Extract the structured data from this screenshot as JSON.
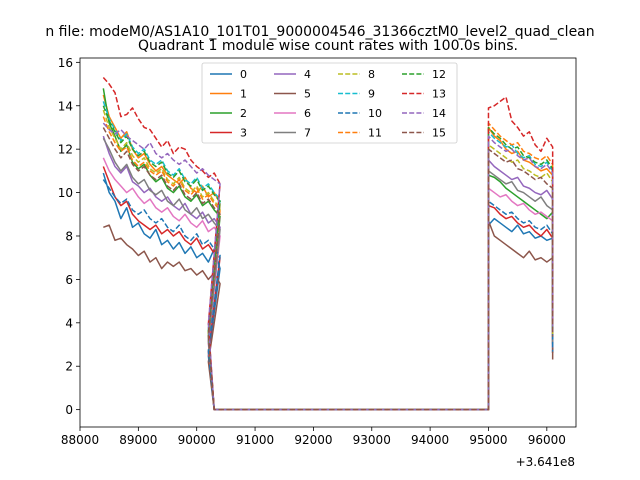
{
  "chart_data": {
    "type": "line",
    "suptitle": "n file: modeM0/AS1A10_101T01_9000004546_31366cztM0_level2_quad_clean",
    "title": "Quadrant 1 module wise count rates with 100.0s bins.",
    "xlabel": "",
    "ylabel": "",
    "x_offset_label": "+3.641e8",
    "xlim": [
      88000,
      96500
    ],
    "ylim": [
      -0.8,
      16.2
    ],
    "xticks": [
      88000,
      89000,
      90000,
      91000,
      92000,
      93000,
      94000,
      95000,
      96000
    ],
    "yticks": [
      0,
      2,
      4,
      6,
      8,
      10,
      12,
      14,
      16
    ],
    "grid": false,
    "legend_position": "top-center",
    "legend_columns": 4,
    "segments": [
      {
        "x_start": 88400,
        "x_step": 100,
        "count": 21,
        "drop_x": [
          90200,
          90300
        ]
      },
      {
        "x_start": 95000,
        "x_step": 100,
        "count": 12,
        "drop_x": [
          96100
        ]
      }
    ],
    "zero_range": [
      90300,
      95000
    ],
    "series": [
      {
        "name": "0",
        "color": "#1f77b4",
        "dashed": false,
        "seg1": [
          10.9,
          10.0,
          9.6,
          8.8,
          9.3,
          8.4,
          8.6,
          8.1,
          7.9,
          8.3,
          7.6,
          7.8,
          7.4,
          7.7,
          7.2,
          7.5,
          7.0,
          7.2,
          6.8,
          7.4,
          6.5
        ],
        "seg2": [
          8.5,
          8.8,
          8.6,
          8.4,
          8.2,
          8.5,
          8.1,
          8.2,
          7.9,
          8.0,
          7.8,
          7.9
        ]
      },
      {
        "name": "1",
        "color": "#ff7f0e",
        "dashed": false,
        "seg1": [
          14.5,
          13.5,
          13.0,
          12.5,
          12.8,
          12.0,
          11.6,
          11.8,
          11.3,
          11.0,
          11.2,
          10.8,
          10.6,
          10.4,
          10.7,
          10.2,
          10.0,
          10.3,
          9.8,
          10.0,
          9.5
        ],
        "seg2": [
          13.0,
          12.6,
          12.4,
          12.0,
          11.8,
          11.9,
          11.5,
          11.4,
          11.2,
          11.0,
          11.1,
          10.8
        ]
      },
      {
        "name": "2",
        "color": "#2ca02c",
        "dashed": false,
        "seg1": [
          14.8,
          13.2,
          12.6,
          11.9,
          12.2,
          11.4,
          11.1,
          11.3,
          10.8,
          10.5,
          10.7,
          10.2,
          10.0,
          10.3,
          9.8,
          9.6,
          9.9,
          9.4,
          9.6,
          9.2,
          8.9
        ],
        "seg2": [
          10.8,
          10.7,
          10.5,
          10.2,
          10.0,
          9.8,
          9.6,
          9.4,
          9.2,
          9.0,
          8.8,
          9.1
        ]
      },
      {
        "name": "3",
        "color": "#d62728",
        "dashed": false,
        "seg1": [
          11.2,
          10.5,
          9.8,
          9.4,
          9.6,
          9.0,
          8.7,
          8.5,
          8.3,
          8.5,
          8.1,
          8.3,
          8.0,
          8.2,
          7.8,
          7.6,
          7.9,
          7.4,
          7.6,
          7.2,
          7.0
        ],
        "seg2": [
          9.4,
          9.3,
          9.0,
          8.8,
          8.9,
          8.6,
          8.4,
          8.5,
          8.2,
          8.0,
          8.3,
          7.9
        ]
      },
      {
        "name": "4",
        "color": "#9467bd",
        "dashed": false,
        "seg1": [
          12.6,
          11.8,
          11.2,
          10.9,
          11.2,
          10.5,
          10.3,
          10.0,
          10.2,
          9.8,
          9.6,
          9.8,
          9.4,
          9.2,
          9.5,
          9.0,
          8.8,
          9.1,
          8.6,
          8.8,
          8.4
        ],
        "seg2": [
          11.5,
          11.2,
          11.0,
          10.8,
          10.6,
          10.7,
          10.3,
          10.2,
          10.0,
          9.9,
          10.1,
          9.7
        ]
      },
      {
        "name": "5",
        "color": "#8c564b",
        "dashed": false,
        "seg1": [
          8.4,
          8.5,
          7.8,
          7.9,
          7.6,
          7.4,
          7.1,
          7.3,
          6.8,
          7.0,
          6.5,
          6.8,
          6.6,
          6.8,
          6.4,
          6.5,
          6.2,
          6.4,
          6.0,
          6.3,
          5.8
        ],
        "seg2": [
          8.7,
          8.0,
          7.8,
          7.6,
          7.4,
          7.2,
          7.0,
          7.3,
          6.9,
          7.0,
          6.8,
          7.0
        ]
      },
      {
        "name": "6",
        "color": "#e377c2",
        "dashed": false,
        "seg1": [
          11.6,
          11.0,
          10.6,
          10.3,
          10.0,
          10.2,
          9.8,
          9.5,
          9.7,
          9.3,
          9.1,
          9.3,
          8.9,
          8.7,
          9.0,
          8.6,
          8.4,
          8.7,
          8.2,
          8.4,
          8.0
        ],
        "seg2": [
          10.2,
          10.0,
          9.8,
          9.9,
          9.6,
          9.4,
          9.5,
          9.2,
          9.0,
          9.1,
          8.9,
          8.7
        ]
      },
      {
        "name": "7",
        "color": "#7f7f7f",
        "dashed": false,
        "seg1": [
          12.5,
          12.0,
          11.4,
          11.0,
          11.3,
          10.7,
          10.4,
          10.6,
          10.1,
          9.9,
          10.1,
          9.6,
          9.4,
          9.7,
          9.2,
          9.0,
          9.3,
          8.8,
          9.0,
          8.6,
          8.3
        ],
        "seg2": [
          11.0,
          10.8,
          10.6,
          10.4,
          10.5,
          10.1,
          10.0,
          9.8,
          9.6,
          9.8,
          9.4,
          9.2
        ]
      },
      {
        "name": "8",
        "color": "#bcbd22",
        "dashed": true,
        "seg1": [
          13.8,
          13.0,
          12.5,
          12.0,
          12.3,
          11.7,
          11.4,
          11.6,
          11.1,
          10.9,
          11.1,
          10.6,
          10.4,
          10.7,
          10.2,
          10.0,
          10.3,
          9.8,
          10.0,
          9.6,
          9.3
        ],
        "seg2": [
          12.2,
          12.0,
          11.8,
          11.6,
          11.4,
          11.5,
          11.1,
          11.0,
          10.8,
          10.7,
          10.9,
          10.5
        ]
      },
      {
        "name": "9",
        "color": "#17becf",
        "dashed": true,
        "seg1": [
          14.2,
          13.4,
          12.9,
          12.4,
          12.7,
          12.1,
          11.8,
          12.0,
          11.5,
          11.3,
          11.5,
          11.0,
          10.8,
          11.1,
          10.6,
          10.4,
          10.7,
          10.2,
          10.4,
          10.0,
          9.7
        ],
        "seg2": [
          12.8,
          12.5,
          12.3,
          12.1,
          12.2,
          11.8,
          11.6,
          11.7,
          11.3,
          11.2,
          11.4,
          11.0
        ]
      },
      {
        "name": "10",
        "color": "#1f77b4",
        "dashed": true,
        "seg1": [
          10.6,
          10.2,
          9.8,
          9.5,
          9.7,
          9.2,
          9.0,
          9.2,
          8.8,
          8.6,
          8.8,
          8.4,
          8.2,
          8.5,
          8.0,
          7.8,
          8.1,
          7.6,
          7.8,
          7.4,
          7.1
        ],
        "seg2": [
          9.6,
          9.4,
          9.2,
          9.0,
          9.1,
          8.8,
          8.6,
          8.7,
          8.4,
          8.3,
          8.5,
          8.1
        ]
      },
      {
        "name": "11",
        "color": "#ff7f0e",
        "dashed": true,
        "seg1": [
          13.5,
          12.8,
          12.3,
          11.9,
          12.1,
          11.5,
          11.2,
          11.4,
          11.0,
          10.8,
          11.0,
          10.5,
          10.3,
          10.6,
          10.1,
          9.9,
          10.2,
          9.7,
          9.9,
          9.5,
          9.2
        ],
        "seg2": [
          13.2,
          12.9,
          12.6,
          12.4,
          12.2,
          12.3,
          11.9,
          11.8,
          11.6,
          11.5,
          11.7,
          11.3
        ]
      },
      {
        "name": "12",
        "color": "#2ca02c",
        "dashed": true,
        "seg1": [
          14.0,
          13.3,
          12.8,
          12.3,
          12.6,
          12.0,
          11.7,
          11.9,
          11.4,
          11.2,
          11.4,
          10.9,
          10.7,
          11.0,
          10.5,
          10.3,
          10.6,
          10.1,
          10.3,
          9.9,
          9.6
        ],
        "seg2": [
          13.0,
          12.7,
          12.5,
          12.2,
          12.0,
          12.1,
          11.7,
          11.6,
          11.4,
          11.3,
          11.5,
          11.1
        ]
      },
      {
        "name": "13",
        "color": "#d62728",
        "dashed": true,
        "seg1": [
          15.3,
          15.0,
          14.6,
          13.5,
          13.6,
          13.9,
          13.4,
          13.0,
          12.9,
          12.5,
          12.1,
          12.4,
          11.8,
          12.1,
          12.0,
          11.5,
          11.2,
          11.0,
          10.7,
          10.9,
          10.4
        ],
        "seg2": [
          13.9,
          14.0,
          14.2,
          14.4,
          13.3,
          13.0,
          12.6,
          12.8,
          12.2,
          11.9,
          12.5,
          12.1
        ]
      },
      {
        "name": "14",
        "color": "#9467bd",
        "dashed": true,
        "seg1": [
          13.2,
          12.9,
          12.7,
          12.9,
          12.6,
          12.4,
          12.2,
          12.0,
          12.3,
          11.8,
          11.6,
          11.8,
          11.5,
          11.3,
          11.5,
          11.2,
          10.9,
          11.1,
          10.8,
          10.6,
          10.4
        ],
        "seg2": [
          12.6,
          12.3,
          12.1,
          11.9,
          12.0,
          11.7,
          11.5,
          11.6,
          11.2,
          11.1,
          11.3,
          10.9
        ]
      },
      {
        "name": "15",
        "color": "#8c564b",
        "dashed": true,
        "seg1": [
          13.0,
          12.5,
          12.0,
          11.6,
          11.9,
          11.3,
          11.0,
          11.2,
          10.8,
          10.6,
          10.8,
          10.3,
          10.1,
          10.4,
          9.9,
          9.7,
          10.0,
          9.5,
          9.7,
          9.3,
          9.0
        ],
        "seg2": [
          12.0,
          11.8,
          11.6,
          11.4,
          11.5,
          11.1,
          11.0,
          10.8,
          10.6,
          10.7,
          10.4,
          10.2
        ]
      }
    ]
  }
}
